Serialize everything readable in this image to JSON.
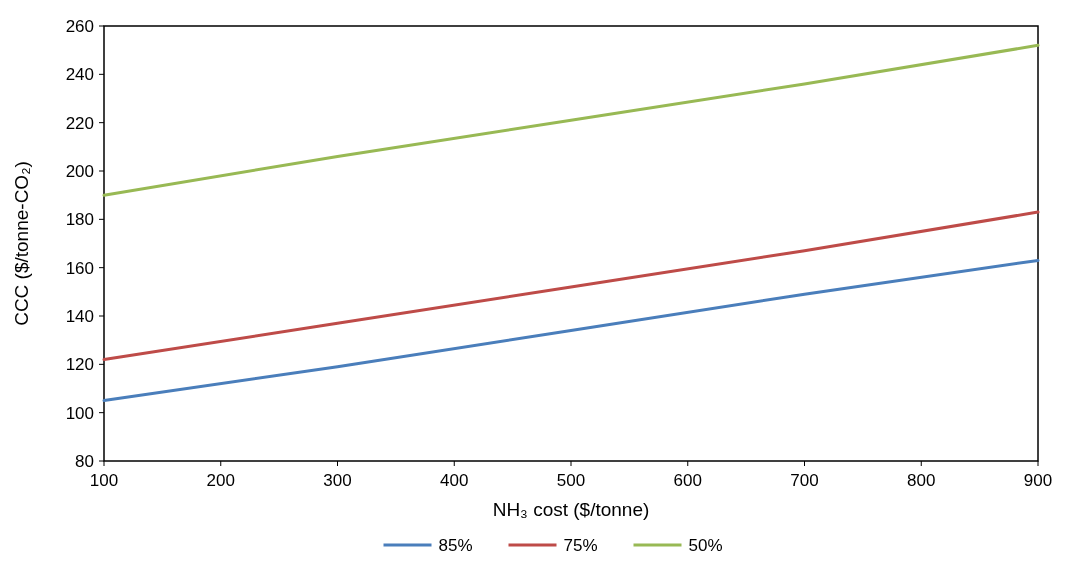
{
  "chart_data": {
    "type": "line",
    "xlabel": "NH₃ cost ($/tonne)",
    "ylabel": "CCC ($/tonne-CO₂)",
    "x": [
      100,
      300,
      500,
      700,
      900
    ],
    "xlim": [
      100,
      900
    ],
    "xticks": [
      100,
      200,
      300,
      400,
      500,
      600,
      700,
      800,
      900
    ],
    "ylim": [
      80,
      260
    ],
    "yticks": [
      80,
      100,
      120,
      140,
      160,
      180,
      200,
      220,
      240,
      260
    ],
    "grid": false,
    "legend": "bottom",
    "marker": "none",
    "line_style": "solid",
    "series": [
      {
        "name": "85%",
        "color": "#4a7ebb",
        "values": [
          105,
          119,
          134,
          149,
          163
        ]
      },
      {
        "name": "75%",
        "color": "#be4b48",
        "values": [
          122,
          137,
          152,
          167,
          183
        ]
      },
      {
        "name": "50%",
        "color": "#98b954",
        "values": [
          190,
          206,
          221,
          236,
          252
        ]
      }
    ]
  }
}
